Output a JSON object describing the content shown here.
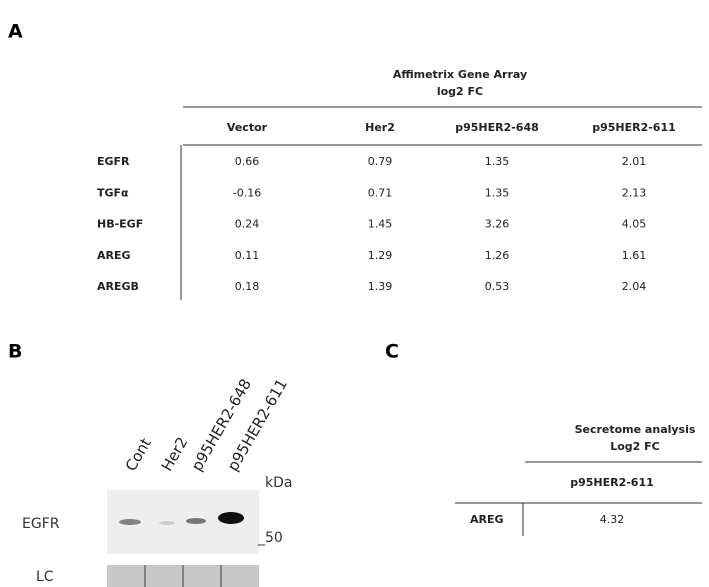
{
  "panels": {
    "a": "A",
    "b": "B",
    "c": "C"
  },
  "table_a": {
    "title": [
      "Affimetrix Gene Array",
      "log2 FC"
    ],
    "columns": [
      "Vector",
      "Her2",
      "p95HER2-648",
      "p95HER2-611"
    ],
    "rows": [
      {
        "label": "EGFR",
        "cells": [
          "0.66",
          "0.79",
          "1.35",
          "2.01"
        ]
      },
      {
        "label": "TGFα",
        "cells": [
          "-0.16",
          "0.71",
          "1.35",
          "2.13"
        ]
      },
      {
        "label": "HB-EGF",
        "cells": [
          "0.24",
          "1.45",
          "3.26",
          "4.05"
        ]
      },
      {
        "label": "AREG",
        "cells": [
          "0.11",
          "1.29",
          "1.26",
          "1.61"
        ]
      },
      {
        "label": "AREGB",
        "cells": [
          "0.18",
          "1.39",
          "0.53",
          "2.04"
        ]
      }
    ]
  },
  "blot": {
    "lanes": [
      "Cont",
      "Her2",
      "p95HER2-648",
      "p95HER2-611"
    ],
    "unit": "kDa",
    "marker": "_50",
    "rows": [
      "EGFR",
      "LC"
    ]
  },
  "table_c": {
    "title": [
      "Secretome analysis",
      "Log2 FC"
    ],
    "column": "p95HER2-611",
    "row": {
      "label": "AREG",
      "cell": "4.32"
    }
  }
}
